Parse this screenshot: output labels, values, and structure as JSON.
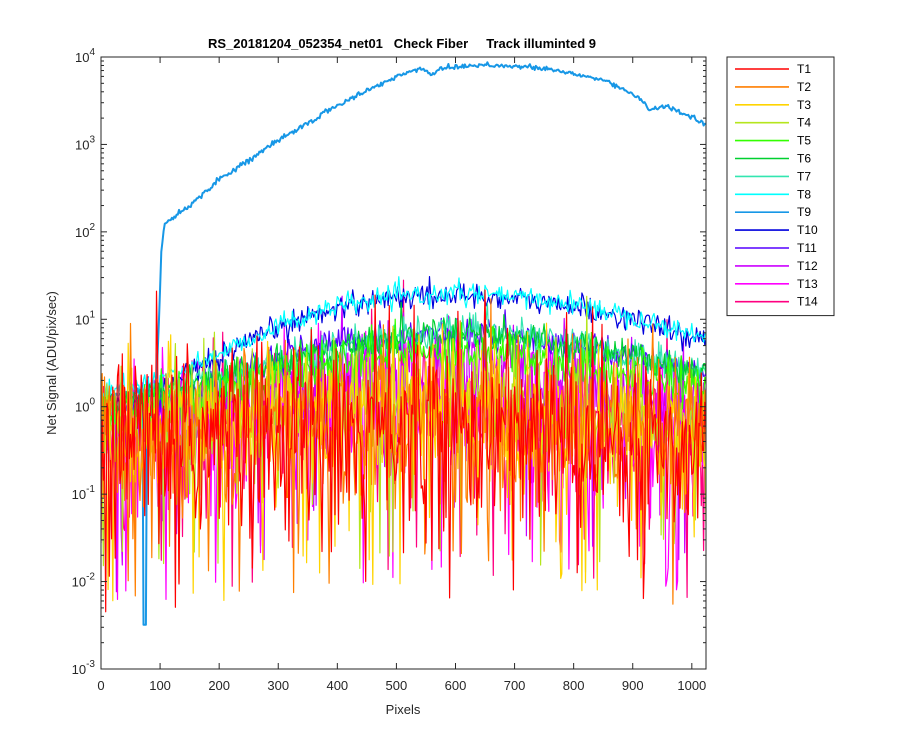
{
  "chart_data": {
    "type": "line",
    "title": "RS_20181204_052354_net01   Check Fiber     Track illuminted 9",
    "xlabel": "Pixels",
    "ylabel": "Net Signal (ADU/pix/sec)",
    "xlim": [
      0,
      1024
    ],
    "ylim": [
      0.001,
      10000
    ],
    "yscale": "log",
    "x_ticks": [
      0,
      100,
      200,
      300,
      400,
      500,
      600,
      700,
      800,
      900,
      1000
    ],
    "x_tick_labels": [
      "0",
      "100",
      "200",
      "300",
      "400",
      "500",
      "600",
      "700",
      "800",
      "900",
      "1000"
    ],
    "y_ticks": [
      0.001,
      0.01,
      0.1,
      1,
      10,
      100,
      1000,
      10000
    ],
    "y_tick_labels": [
      {
        "base": "10",
        "exp": "-3"
      },
      {
        "base": "10",
        "exp": "-2"
      },
      {
        "base": "10",
        "exp": "-1"
      },
      {
        "base": "10",
        "exp": "0"
      },
      {
        "base": "10",
        "exp": "1"
      },
      {
        "base": "10",
        "exp": "2"
      },
      {
        "base": "10",
        "exp": "3"
      },
      {
        "base": "10",
        "exp": "4"
      }
    ],
    "grid": false,
    "legend_position": "outside-right",
    "series": [
      {
        "name": "T1",
        "color": "#ff0000",
        "profile": [
          [
            0,
            0.35
          ],
          [
            200,
            0.45
          ],
          [
            500,
            0.6
          ],
          [
            650,
            0.6
          ],
          [
            800,
            0.45
          ],
          [
            1024,
            0.35
          ]
        ],
        "noise": 0.55
      },
      {
        "name": "T2",
        "color": "#ff7f00",
        "profile": [
          [
            0,
            0.4
          ],
          [
            200,
            0.55
          ],
          [
            500,
            0.75
          ],
          [
            650,
            0.75
          ],
          [
            800,
            0.55
          ],
          [
            1024,
            0.4
          ]
        ],
        "noise": 0.45
      },
      {
        "name": "T3",
        "color": "#ffd400",
        "profile": [
          [
            0,
            0.45
          ],
          [
            200,
            0.6
          ],
          [
            500,
            0.9
          ],
          [
            650,
            0.9
          ],
          [
            800,
            0.6
          ],
          [
            1024,
            0.45
          ]
        ],
        "noise": 0.4
      },
      {
        "name": "T4",
        "color": "#b5e61d",
        "profile": [
          [
            0,
            0.5
          ],
          [
            200,
            0.8
          ],
          [
            500,
            1.5
          ],
          [
            650,
            1.5
          ],
          [
            800,
            1.0
          ],
          [
            1024,
            0.6
          ]
        ],
        "noise": 0.3
      },
      {
        "name": "T5",
        "color": "#33ff00",
        "profile": [
          [
            0,
            0.8
          ],
          [
            200,
            1.5
          ],
          [
            500,
            4.2
          ],
          [
            650,
            4.5
          ],
          [
            800,
            3.0
          ],
          [
            1024,
            1.8
          ]
        ],
        "noise": 0.14
      },
      {
        "name": "T6",
        "color": "#00d030",
        "profile": [
          [
            0,
            0.9
          ],
          [
            200,
            2.2
          ],
          [
            500,
            6.5
          ],
          [
            650,
            7.0
          ],
          [
            800,
            5.0
          ],
          [
            1024,
            2.5
          ]
        ],
        "noise": 0.1
      },
      {
        "name": "T7",
        "color": "#33e6b0",
        "profile": [
          [
            0,
            0.9
          ],
          [
            200,
            2.2
          ],
          [
            500,
            6.8
          ],
          [
            650,
            7.2
          ],
          [
            800,
            5.0
          ],
          [
            1024,
            2.5
          ]
        ],
        "noise": 0.1
      },
      {
        "name": "T8",
        "color": "#00ffff",
        "profile": [
          [
            0,
            1.4
          ],
          [
            100,
            2.0
          ],
          [
            200,
            4.0
          ],
          [
            300,
            8.5
          ],
          [
            400,
            14
          ],
          [
            500,
            18
          ],
          [
            600,
            20
          ],
          [
            700,
            18
          ],
          [
            800,
            15
          ],
          [
            900,
            11
          ],
          [
            1024,
            6.0
          ]
        ],
        "noise": 0.06
      },
      {
        "name": "T9",
        "color": "#1797e6",
        "profile": [
          [
            0,
            1.3
          ],
          [
            90,
            1.6
          ],
          [
            95,
            2.5
          ],
          [
            102,
            60
          ],
          [
            108,
            125
          ],
          [
            150,
            200
          ],
          [
            200,
            400
          ],
          [
            300,
            1100
          ],
          [
            400,
            2800
          ],
          [
            500,
            6000
          ],
          [
            545,
            7500
          ],
          [
            560,
            6200
          ],
          [
            575,
            7500
          ],
          [
            650,
            8200
          ],
          [
            750,
            7400
          ],
          [
            850,
            5500
          ],
          [
            910,
            3500
          ],
          [
            930,
            2500
          ],
          [
            960,
            2700
          ],
          [
            1024,
            1700
          ]
        ],
        "noise": 0.015
      },
      {
        "name": "T10",
        "color": "#0000dd",
        "profile": [
          [
            0,
            1.0
          ],
          [
            100,
            1.5
          ],
          [
            200,
            3.5
          ],
          [
            300,
            8.0
          ],
          [
            400,
            14
          ],
          [
            500,
            18
          ],
          [
            600,
            19
          ],
          [
            700,
            17
          ],
          [
            800,
            14
          ],
          [
            900,
            10
          ],
          [
            1024,
            5.5
          ]
        ],
        "noise": 0.07
      },
      {
        "name": "T11",
        "color": "#5500ff",
        "profile": [
          [
            0,
            0.9
          ],
          [
            150,
            1.3
          ],
          [
            250,
            3.0
          ],
          [
            400,
            5.5
          ],
          [
            550,
            6.8
          ],
          [
            650,
            6.8
          ],
          [
            800,
            5.0
          ],
          [
            900,
            3.8
          ],
          [
            1024,
            2.4
          ]
        ],
        "noise": 0.09
      },
      {
        "name": "T12",
        "color": "#cc00ff",
        "profile": [
          [
            0,
            0.6
          ],
          [
            200,
            1.0
          ],
          [
            400,
            2.4
          ],
          [
            550,
            3.0
          ],
          [
            650,
            3.0
          ],
          [
            800,
            2.2
          ],
          [
            1024,
            1.0
          ]
        ],
        "noise": 0.25
      },
      {
        "name": "T13",
        "color": "#ff00ff",
        "profile": [
          [
            0,
            0.5
          ],
          [
            200,
            0.7
          ],
          [
            500,
            1.0
          ],
          [
            650,
            1.0
          ],
          [
            800,
            0.75
          ],
          [
            1024,
            0.5
          ]
        ],
        "noise": 0.38
      },
      {
        "name": "T14",
        "color": "#ff0080",
        "profile": [
          [
            0,
            0.5
          ],
          [
            200,
            0.7
          ],
          [
            500,
            1.0
          ],
          [
            650,
            1.0
          ],
          [
            800,
            0.75
          ],
          [
            1024,
            0.5
          ]
        ],
        "noise": 0.38
      }
    ]
  }
}
